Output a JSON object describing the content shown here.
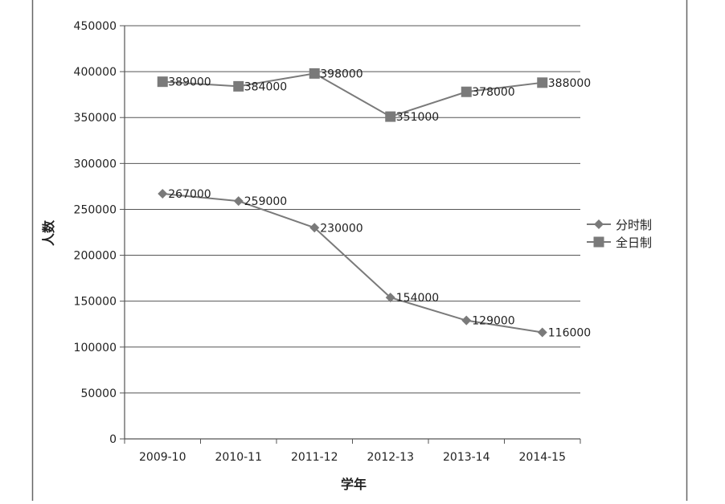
{
  "chart_data": {
    "type": "line",
    "categories": [
      "2009-10",
      "2010-11",
      "2011-12",
      "2012-13",
      "2013-14",
      "2014-15"
    ],
    "series": [
      {
        "name": "分时制",
        "marker": "diamond",
        "values": [
          267000,
          259000,
          230000,
          154000,
          129000,
          116000
        ]
      },
      {
        "name": "全日制",
        "marker": "square",
        "values": [
          389000,
          384000,
          398000,
          351000,
          378000,
          388000
        ]
      }
    ],
    "data_labels": {
      "分时制": [
        "267000",
        "259000",
        "230000",
        "154000",
        "129000",
        "116000"
      ],
      "全日制": [
        "389000",
        "384000",
        "398000",
        "351000",
        "378000",
        "388000"
      ]
    },
    "xlabel": "学年",
    "ylabel": "人数",
    "ylim": [
      0,
      450000
    ],
    "yticks": [
      "0",
      "50000",
      "100000",
      "150000",
      "200000",
      "250000",
      "300000",
      "350000",
      "400000",
      "450000"
    ],
    "grid": true,
    "legend": "right",
    "colors": {
      "line": "#7a7a7a",
      "grid": "#555555",
      "axis": "#555555",
      "frame": "#666666"
    }
  }
}
